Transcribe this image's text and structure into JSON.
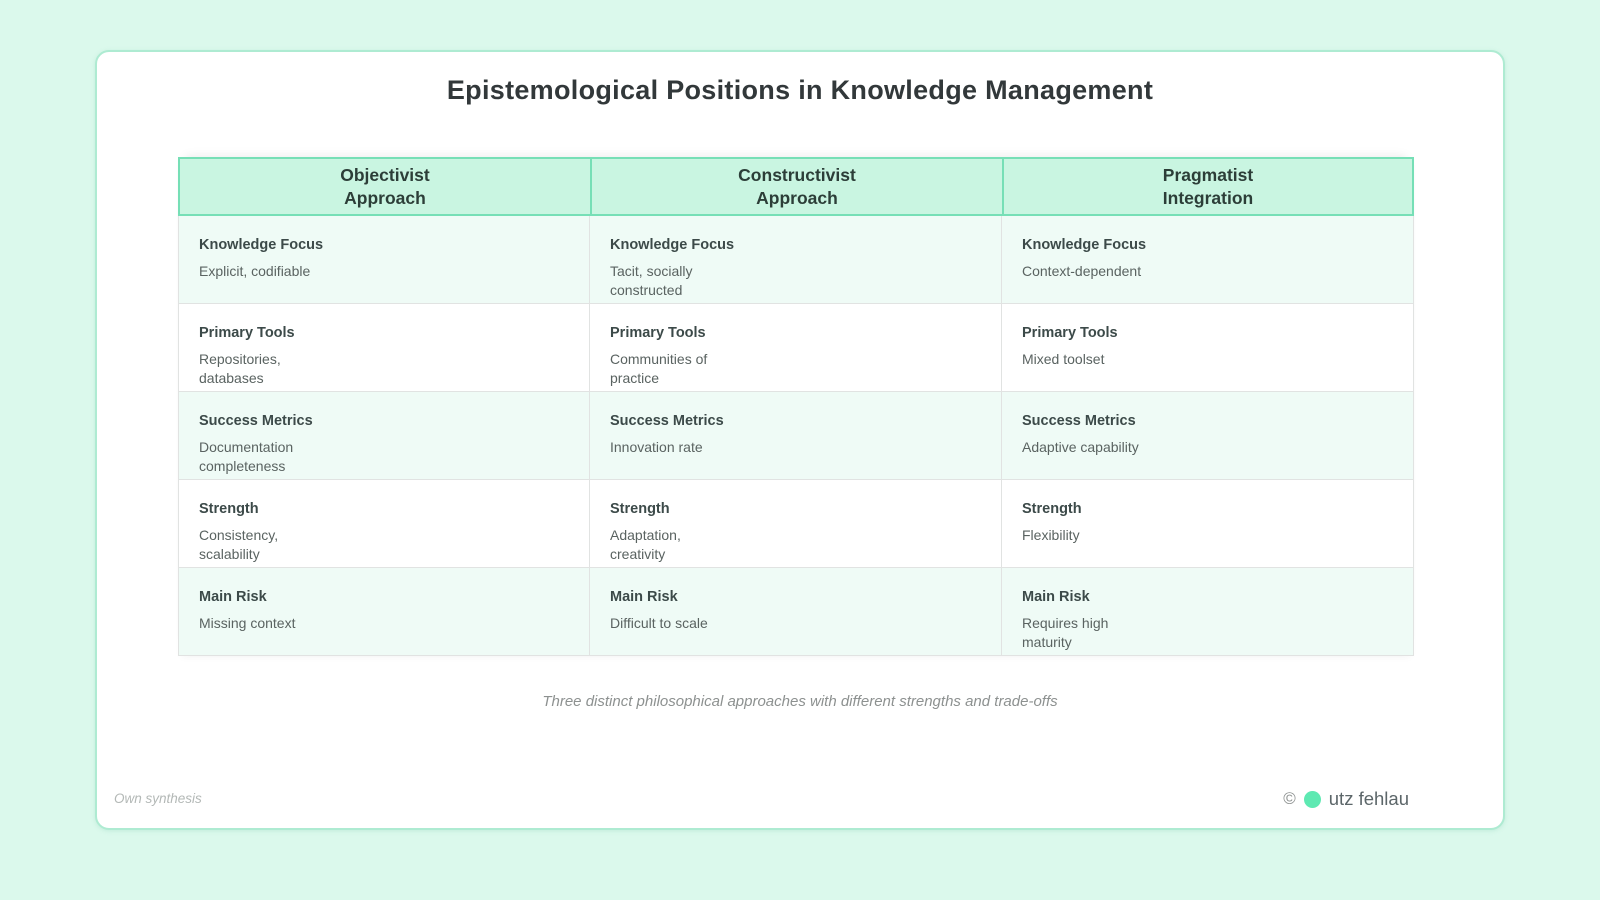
{
  "title": "Epistemological Positions in Knowledge Management",
  "caption": "Three distinct philosophical approaches with different strengths and trade-offs",
  "footer": {
    "source_note": "Own synthesis",
    "copyright_symbol": "©",
    "author": "utz fehlau"
  },
  "colors": {
    "page_background": "#dbf9ec",
    "card_background": "#ffffff",
    "card_border": "#aeebd2",
    "header_background": "#c9f5e1",
    "header_border": "#76dfb6",
    "row_tint": "#effbf6",
    "grid_line": "#e1e3e2",
    "accent_dot": "#5ee9b2"
  },
  "table": {
    "columns": [
      {
        "header_line1": "Objectivist",
        "header_line2": "Approach",
        "cells": [
          {
            "label": "Knowledge Focus",
            "value": "Explicit, codifiable"
          },
          {
            "label": "Primary Tools",
            "value": "Repositories,\ndatabases"
          },
          {
            "label": "Success Metrics",
            "value": "Documentation\ncompleteness"
          },
          {
            "label": "Strength",
            "value": "Consistency,\nscalability"
          },
          {
            "label": "Main Risk",
            "value": "Missing context"
          }
        ]
      },
      {
        "header_line1": "Constructivist",
        "header_line2": "Approach",
        "cells": [
          {
            "label": "Knowledge Focus",
            "value": "Tacit, socially\nconstructed"
          },
          {
            "label": "Primary Tools",
            "value": "Communities of\npractice"
          },
          {
            "label": "Success Metrics",
            "value": "Innovation rate"
          },
          {
            "label": "Strength",
            "value": "Adaptation,\ncreativity"
          },
          {
            "label": "Main Risk",
            "value": "Difficult to scale"
          }
        ]
      },
      {
        "header_line1": "Pragmatist",
        "header_line2": "Integration",
        "cells": [
          {
            "label": "Knowledge Focus",
            "value": "Context-dependent"
          },
          {
            "label": "Primary Tools",
            "value": "Mixed toolset"
          },
          {
            "label": "Success Metrics",
            "value": "Adaptive capability"
          },
          {
            "label": "Strength",
            "value": "Flexibility"
          },
          {
            "label": "Main Risk",
            "value": "Requires high\nmaturity"
          }
        ]
      }
    ]
  },
  "chart_data": {
    "type": "table",
    "title": "Epistemological Positions in Knowledge Management",
    "columns": [
      "Objectivist Approach",
      "Constructivist Approach",
      "Pragmatist Integration"
    ],
    "rows": [
      "Knowledge Focus",
      "Primary Tools",
      "Success Metrics",
      "Strength",
      "Main Risk"
    ],
    "values": [
      [
        "Explicit, codifiable",
        "Tacit, socially constructed",
        "Context-dependent"
      ],
      [
        "Repositories, databases",
        "Communities of practice",
        "Mixed toolset"
      ],
      [
        "Documentation completeness",
        "Innovation rate",
        "Adaptive capability"
      ],
      [
        "Consistency, scalability",
        "Adaptation, creativity",
        "Flexibility"
      ],
      [
        "Missing context",
        "Difficult to scale",
        "Requires high maturity"
      ]
    ],
    "caption": "Three distinct philosophical approaches with different strengths and trade-offs"
  }
}
